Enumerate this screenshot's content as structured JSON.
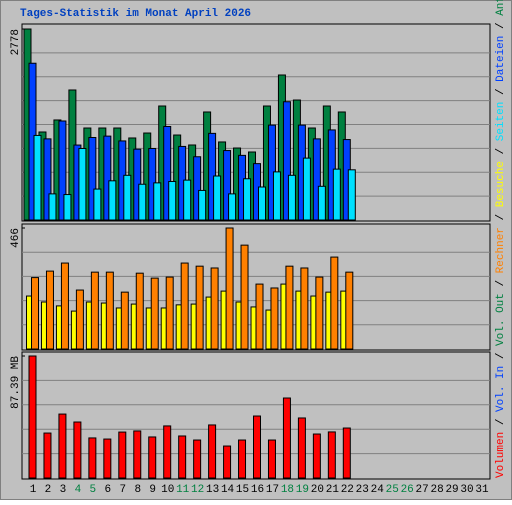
{
  "chart_data": [
    {
      "type": "bar",
      "title": "Tages-Statistik im Monat April 2026",
      "ylim": [
        0,
        2778
      ],
      "yticks": [
        2778
      ],
      "series": [
        {
          "name": "Anfragen",
          "color": "#008040",
          "values": [
            2778,
            1280,
            1455,
            1891,
            1338,
            1338,
            1338,
            1193,
            1265,
            1658,
            1236,
            1091,
            1571,
            1135,
            1047,
            989,
            1658,
            2109,
            1745,
            1338,
            1658,
            1571,
            null,
            null,
            null,
            null,
            null,
            null,
            null,
            null,
            null
          ]
        },
        {
          "name": "Dateien",
          "color": "#0040ff",
          "values": [
            2280,
            1180,
            1440,
            1090,
            1200,
            1220,
            1150,
            1030,
            1040,
            1360,
            1070,
            920,
            1260,
            1010,
            940,
            820,
            1380,
            1720,
            1380,
            1180,
            1310,
            1170,
            null,
            null,
            null,
            null,
            null,
            null,
            null,
            null,
            null
          ]
        },
        {
          "name": "Seiten",
          "color": "#00e0ff",
          "values": [
            1230,
            380,
            370,
            1040,
            450,
            570,
            650,
            520,
            540,
            560,
            580,
            430,
            640,
            380,
            600,
            480,
            700,
            650,
            900,
            490,
            740,
            730,
            null,
            null,
            null,
            null,
            null,
            null,
            null,
            null,
            null
          ]
        }
      ]
    },
    {
      "type": "bar",
      "ylim": [
        0,
        466
      ],
      "yticks": [
        466
      ],
      "series": [
        {
          "name": "Besuche",
          "color": "#ffff00",
          "values": [
            204,
            181,
            166,
            146,
            181,
            177,
            158,
            173,
            158,
            158,
            170,
            173,
            200,
            223,
            181,
            162,
            150,
            250,
            223,
            204,
            219,
            223,
            null,
            null,
            null,
            null,
            null,
            null,
            null,
            null,
            null
          ]
        },
        {
          "name": "Rechner",
          "color": "#ff8000",
          "values": [
            275,
            300,
            331,
            227,
            296,
            296,
            219,
            292,
            273,
            277,
            331,
            319,
            312,
            466,
            400,
            250,
            235,
            319,
            312,
            277,
            354,
            296,
            null,
            null,
            null,
            null,
            null,
            null,
            null,
            null,
            null
          ]
        }
      ]
    },
    {
      "type": "bar",
      "ylim": [
        0,
        87.39
      ],
      "yticks": [
        {
          "value": 87.39,
          "label": "87.39 MB"
        }
      ],
      "categories": [
        "1",
        "2",
        "3",
        "4",
        "5",
        "6",
        "7",
        "8",
        "9",
        "10",
        "11",
        "12",
        "13",
        "14",
        "15",
        "16",
        "17",
        "18",
        "19",
        "20",
        "21",
        "22",
        "23",
        "24",
        "25",
        "26",
        "27",
        "28",
        "29",
        "30",
        "31"
      ],
      "category_colors": [
        "#000000",
        "#000000",
        "#000000",
        "#008040",
        "#008040",
        "#000000",
        "#000000",
        "#000000",
        "#000000",
        "#000000",
        "#008040",
        "#008040",
        "#000000",
        "#000000",
        "#000000",
        "#000000",
        "#000000",
        "#008040",
        "#008040",
        "#000000",
        "#000000",
        "#000000",
        "#000000",
        "#000000",
        "#008040",
        "#008040",
        "#000000",
        "#000000",
        "#000000",
        "#000000",
        "#000000"
      ],
      "series": [
        {
          "name": "Volumen",
          "color": "#ff0000",
          "values": [
            87.39,
            32.2,
            45.8,
            40.1,
            28.7,
            27.9,
            32.9,
            33.7,
            29.4,
            37.3,
            30.1,
            27.2,
            38.0,
            22.9,
            27.2,
            44.4,
            27.2,
            57.3,
            43.0,
            31.5,
            33.0,
            35.8,
            null,
            null,
            null,
            null,
            null,
            null,
            null,
            null,
            null
          ]
        },
        {
          "name": "Vol. In",
          "color": "#0040ff",
          "values": [
            null,
            null,
            null,
            null,
            null,
            null,
            null,
            null,
            null,
            null,
            null,
            null,
            null,
            null,
            null,
            null,
            null,
            null,
            null,
            null,
            null,
            null,
            null,
            null,
            null,
            null,
            null,
            null,
            null,
            null,
            null
          ]
        },
        {
          "name": "Vol. Out",
          "color": "#008040",
          "values": [
            null,
            null,
            null,
            null,
            null,
            null,
            null,
            null,
            null,
            null,
            null,
            null,
            null,
            null,
            null,
            null,
            null,
            null,
            null,
            null,
            null,
            null,
            null,
            null,
            null,
            null,
            null,
            null,
            null,
            null,
            null
          ]
        }
      ]
    }
  ]
}
